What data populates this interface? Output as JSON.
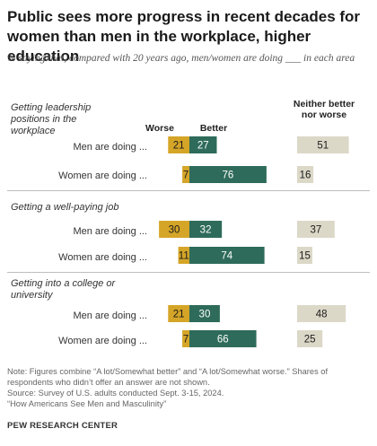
{
  "header": {
    "title": "Public sees more progress in recent decades for women than men in the workplace, higher education",
    "subtitle": "% saying that, compared with 20 years ago, men/women are doing ___ in each area"
  },
  "columns": {
    "worse": "Worse",
    "better": "Better",
    "neither": "Neither better nor worse"
  },
  "colors": {
    "worse": "#d5a528",
    "better": "#2e6b5a",
    "neither": "#dcd8c8"
  },
  "chart_data": {
    "type": "bar",
    "orientation": "horizontal",
    "stacked": "diverging",
    "series": [
      {
        "name": "Worse"
      },
      {
        "name": "Better"
      },
      {
        "name": "Neither better nor worse"
      }
    ],
    "groups": [
      {
        "label": "Getting leadership positions in the workplace",
        "rows": [
          {
            "label": "Men are doing ...",
            "worse": 21,
            "better": 27,
            "neither": 51
          },
          {
            "label": "Women are doing ...",
            "worse": 7,
            "better": 76,
            "neither": 16
          }
        ]
      },
      {
        "label": "Getting a well-paying job",
        "rows": [
          {
            "label": "Men are doing ...",
            "worse": 30,
            "better": 32,
            "neither": 37
          },
          {
            "label": "Women are doing ...",
            "worse": 11,
            "better": 74,
            "neither": 15
          }
        ]
      },
      {
        "label": "Getting into a college or university",
        "rows": [
          {
            "label": "Men are doing ...",
            "worse": 21,
            "better": 30,
            "neither": 48
          },
          {
            "label": "Women are doing ...",
            "worse": 7,
            "better": 66,
            "neither": 25
          }
        ]
      }
    ]
  },
  "footer": {
    "note": "Note: Figures combine “A lot/Somewhat better” and “A lot/Somewhat worse.” Shares of respondents who didn’t offer an answer are not shown.",
    "source": "Source: Survey of U.S. adults conducted Sept. 3-15, 2024.",
    "report": "“How Americans See Men and Masculinity”",
    "org": "PEW RESEARCH CENTER"
  }
}
